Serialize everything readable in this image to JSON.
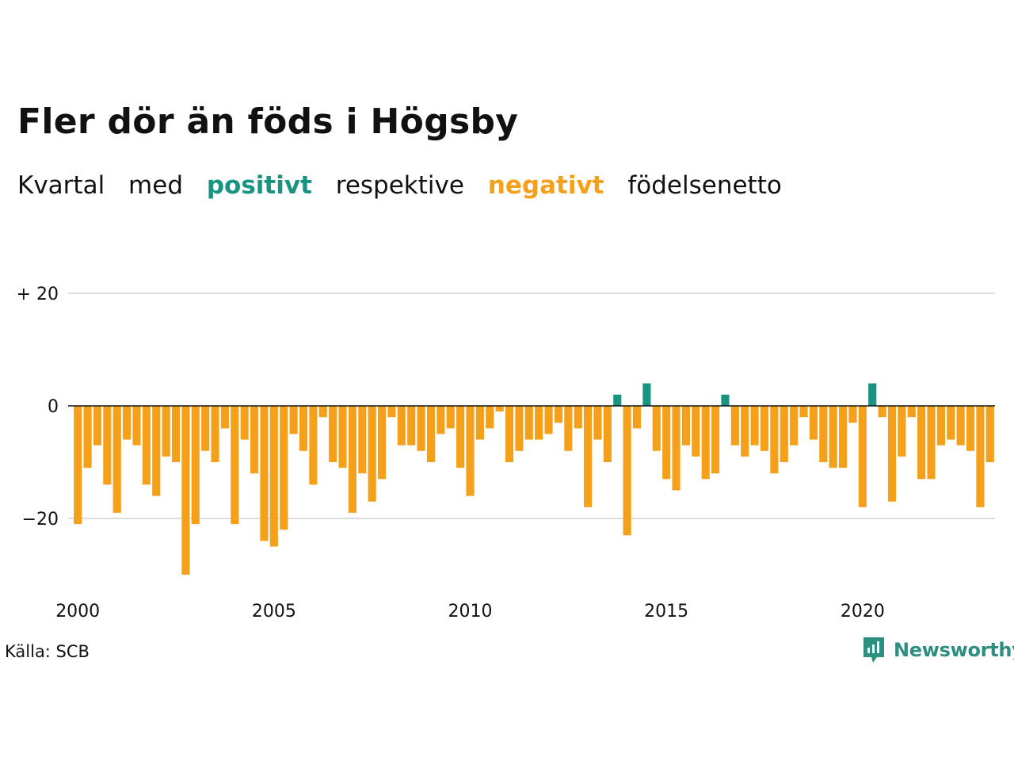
{
  "chart_data": {
    "type": "bar",
    "title": "Fler dör än föds i Högsby",
    "subtitle": {
      "prefix": "Kvartal",
      "med": "med",
      "positive_word": "positivt",
      "middle": "respektive",
      "negative_word": "negativt",
      "suffix": "födelsenetto"
    },
    "x_start_year": 2000,
    "quarters_per_year": 4,
    "x_tick_labels": [
      "2000",
      "2005",
      "2010",
      "2015",
      "2020"
    ],
    "y_tick_labels": [
      "+ 20",
      "0",
      "−20"
    ],
    "y_ticks": [
      20,
      0,
      -20
    ],
    "ylim": [
      -30,
      20
    ],
    "grid": true,
    "colors": {
      "positive": "#1a9482",
      "negative": "#f5a01a",
      "grid": "#dddddd",
      "zero_line": "#111111"
    },
    "values": [
      -21,
      -11,
      -7,
      -14,
      -19,
      -6,
      -7,
      -14,
      -16,
      -9,
      -10,
      -30,
      -21,
      -8,
      -10,
      -4,
      -21,
      -6,
      -12,
      -24,
      -25,
      -22,
      -5,
      -8,
      -14,
      -2,
      -10,
      -11,
      -19,
      -12,
      -17,
      -13,
      -2,
      -7,
      -7,
      -8,
      -10,
      -5,
      -4,
      -11,
      -16,
      -6,
      -4,
      -1,
      -10,
      -8,
      -6,
      -6,
      -5,
      -3,
      -8,
      -4,
      -18,
      -6,
      -10,
      2,
      -23,
      -4,
      4,
      -8,
      -13,
      -15,
      -7,
      -9,
      -13,
      -12,
      2,
      -7,
      -9,
      -7,
      -8,
      -12,
      -10,
      -7,
      -2,
      -6,
      -10,
      -11,
      -11,
      -3,
      -18,
      4,
      -2,
      -17,
      -9,
      -2,
      -13,
      -13,
      -7,
      -6,
      -7,
      -8,
      -18,
      -10
    ]
  },
  "footer": {
    "source": "Källa: SCB",
    "logo_text": "Newsworthy",
    "logo_icon": "bar-chart-speech-bubble-icon"
  }
}
